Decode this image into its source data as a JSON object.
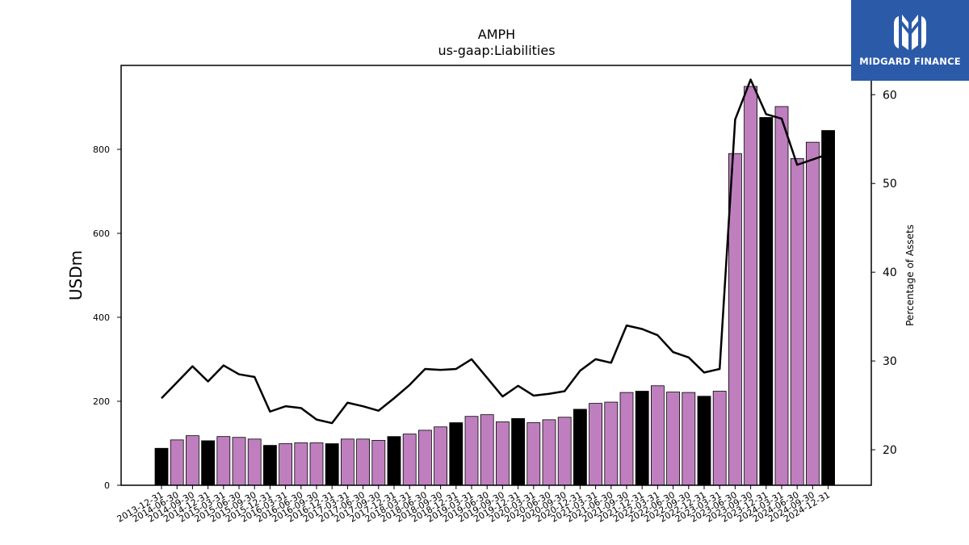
{
  "chart_data": {
    "type": "bar",
    "title": "AMPH",
    "subtitle": "us-gaap:Liabilities",
    "ylabel": "USDm",
    "y2label": "Percentage of Assets",
    "ylim": [
      0,
      1000
    ],
    "y2lim": [
      16,
      63.3
    ],
    "yticks": [
      0,
      200,
      400,
      600,
      800
    ],
    "y2ticks": [
      20,
      30,
      40,
      50,
      60
    ],
    "categories": [
      "2013-12-31",
      "2014-06-30",
      "2014-09-30",
      "2014-12-31",
      "2015-03-31",
      "2015-06-30",
      "2015-09-30",
      "2015-12-31",
      "2016-03-31",
      "2016-06-30",
      "2016-09-30",
      "2016-12-31",
      "2017-03-31",
      "2017-06-30",
      "2017-09-30",
      "2017-12-31",
      "2018-03-31",
      "2018-06-30",
      "2018-09-30",
      "2018-12-31",
      "2019-03-31",
      "2019-06-30",
      "2019-09-30",
      "2019-12-31",
      "2020-03-31",
      "2020-06-30",
      "2020-09-30",
      "2020-12-31",
      "2021-03-31",
      "2021-06-30",
      "2021-09-30",
      "2021-12-31",
      "2022-03-31",
      "2022-06-30",
      "2022-09-30",
      "2022-12-31",
      "2023-03-31",
      "2023-06-30",
      "2023-09-30",
      "2023-12-31",
      "2024-03-31",
      "2024-06-30",
      "2024-09-30",
      "2024-12-31"
    ],
    "series": [
      {
        "type": "bar",
        "axis": "left",
        "values": [
          88,
          108,
          118,
          106,
          116,
          114,
          110,
          95,
          99,
          101,
          101,
          99,
          110,
          110,
          107,
          116,
          122,
          131,
          139,
          149,
          164,
          168,
          151,
          159,
          149,
          156,
          162,
          181,
          195,
          198,
          221,
          224,
          237,
          222,
          221,
          212,
          224,
          790,
          950,
          876,
          902,
          778,
          817,
          845
        ],
        "colors": [
          "#000000",
          "#bf7fbf",
          "#bf7fbf",
          "#000000",
          "#bf7fbf",
          "#bf7fbf",
          "#bf7fbf",
          "#000000",
          "#bf7fbf",
          "#bf7fbf",
          "#bf7fbf",
          "#000000",
          "#bf7fbf",
          "#bf7fbf",
          "#bf7fbf",
          "#000000",
          "#bf7fbf",
          "#bf7fbf",
          "#bf7fbf",
          "#000000",
          "#bf7fbf",
          "#bf7fbf",
          "#bf7fbf",
          "#000000",
          "#bf7fbf",
          "#bf7fbf",
          "#bf7fbf",
          "#000000",
          "#bf7fbf",
          "#bf7fbf",
          "#bf7fbf",
          "#000000",
          "#bf7fbf",
          "#bf7fbf",
          "#bf7fbf",
          "#000000",
          "#bf7fbf",
          "#bf7fbf",
          "#bf7fbf",
          "#000000",
          "#bf7fbf",
          "#bf7fbf",
          "#bf7fbf",
          "#000000"
        ]
      },
      {
        "type": "line",
        "axis": "right",
        "color": "#000000",
        "values": [
          25.8,
          27.6,
          29.4,
          27.7,
          29.5,
          28.5,
          28.2,
          24.3,
          24.9,
          24.7,
          23.4,
          23.0,
          25.3,
          24.9,
          24.4,
          25.8,
          27.3,
          29.1,
          29.0,
          29.1,
          30.2,
          28.1,
          26.0,
          27.2,
          26.1,
          26.3,
          26.6,
          28.9,
          30.2,
          29.8,
          34.0,
          33.6,
          32.9,
          31.0,
          30.4,
          28.7,
          29.1,
          57.2,
          61.7,
          57.8,
          57.3,
          52.1,
          52.7,
          53.3
        ]
      }
    ],
    "grid": false,
    "legend": "none"
  },
  "logo": {
    "name": "MIDGARD FINANCE",
    "background": "#2b5aa8"
  }
}
